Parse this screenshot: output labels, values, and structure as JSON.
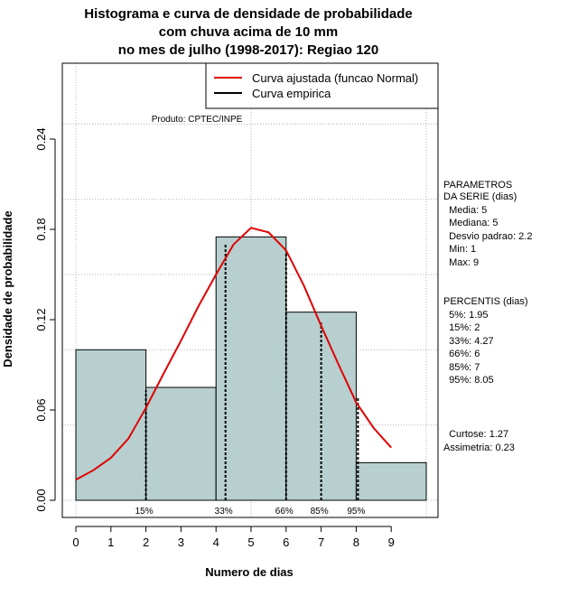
{
  "chart_data": {
    "type": "bar",
    "title": [
      "Histograma e curva de densidade de probabilidade",
      "com chuva acima de 10 mm",
      "no mes de julho (1998-2017): Regiao 120"
    ],
    "xlabel": "Numero de dias",
    "ylabel": "Densidade de probabilidade",
    "xlim": [
      -0.05,
      10.3
    ],
    "ylim": [
      0,
      0.2875
    ],
    "x_ticks": [
      0,
      1,
      2,
      3,
      4,
      5,
      6,
      7,
      8,
      9
    ],
    "y_ticks": [
      0.0,
      0.06,
      0.12,
      0.18,
      0.24
    ],
    "y_tick_labels": [
      "0.00",
      "0.06",
      "0.12",
      "0.18",
      "0.24"
    ],
    "grid": true,
    "legend_placement": "top-right",
    "bar_color": "#b7cfcf",
    "histogram": {
      "bins": [
        {
          "x0": 0,
          "x1": 2,
          "density": 0.1
        },
        {
          "x0": 2,
          "x1": 4,
          "density": 0.075
        },
        {
          "x0": 4,
          "x1": 6,
          "density": 0.175
        },
        {
          "x0": 6,
          "x1": 8,
          "density": 0.125
        },
        {
          "x0": 8,
          "x1": 10,
          "density": 0.025
        }
      ]
    },
    "series": [
      {
        "name": "Curva ajustada (funcao Normal)",
        "color": "#e00000",
        "x": [
          0,
          0.5,
          1,
          1.5,
          2,
          2.5,
          3,
          3.5,
          4,
          4.5,
          5,
          5.5,
          6,
          6.5,
          7,
          7.5,
          8,
          8.5,
          9
        ],
        "y": [
          0.0137,
          0.02,
          0.0282,
          0.041,
          0.0614,
          0.084,
          0.106,
          0.129,
          0.15,
          0.17,
          0.181,
          0.178,
          0.166,
          0.143,
          0.116,
          0.09,
          0.065,
          0.048,
          0.035
        ]
      },
      {
        "name": "Curva empirica",
        "color": "#000000",
        "x": [],
        "y": []
      }
    ],
    "percentile_lines": [
      {
        "label": "15%",
        "x": 2,
        "y": 0.073
      },
      {
        "label": "33%",
        "x": 4.27,
        "y": 0.17
      },
      {
        "label": "66%",
        "x": 6,
        "y": 0.166
      },
      {
        "label": "85%",
        "x": 7,
        "y": 0.118
      },
      {
        "label": "95%",
        "x": 8.05,
        "y": 0.068
      }
    ],
    "annotation": "Produto: CPTEC/INPE"
  },
  "side_panel": {
    "parametros": [
      "PARAMETROS",
      "DA SERIE (dias)",
      "  Media: 5",
      "  Mediana: 5",
      "  Desvio padrao: 2.2",
      "  Min: 1",
      "  Max: 9"
    ],
    "percentis": [
      "PERCENTIS (dias)",
      "  5%: 1.95",
      "  15%: 2",
      "  33%: 4.27",
      "  66%: 6",
      "  85%: 7",
      "  95%: 8.05"
    ],
    "stats": [
      "  Curtose: 1.27",
      "Assimetria: 0.23"
    ]
  }
}
